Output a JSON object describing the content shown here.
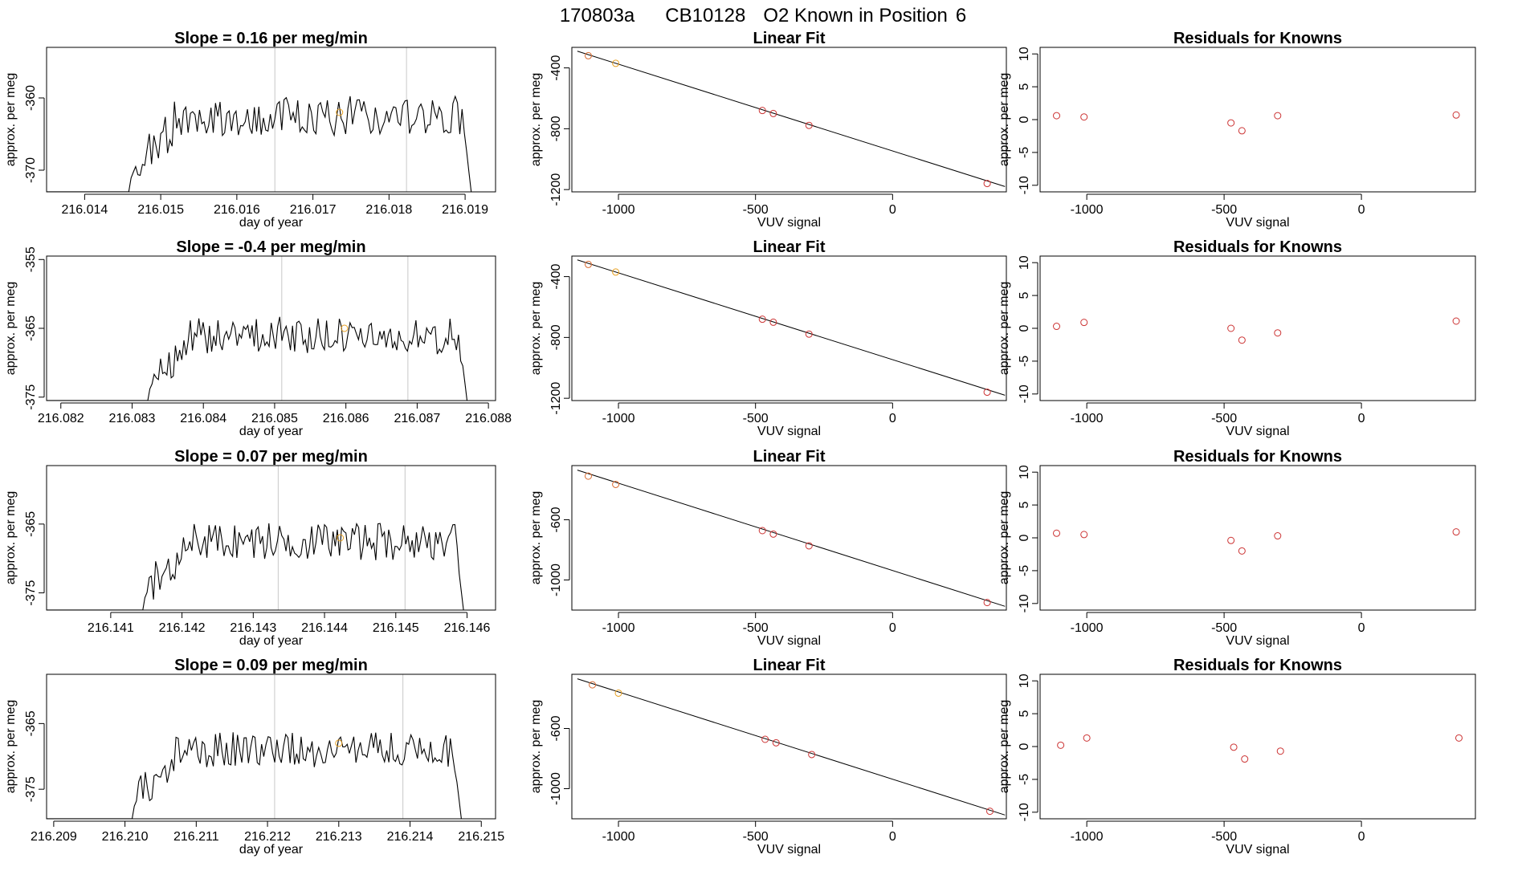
{
  "figure_title": {
    "run": "170803a",
    "cylinder": "CB10128",
    "label": "O2 Known in Position",
    "position": "6"
  },
  "colors": {
    "line": "#000000",
    "vline": "#c8c8c8",
    "point_red": "#cc3333",
    "point_orange": "#e8a020",
    "frame": "#000000"
  },
  "chart_data": [
    {
      "type": "line",
      "panel": "timeseries",
      "row": 1,
      "title_prefix": "Slope = ",
      "slope": "0.16",
      "title_suffix": " per meg/min",
      "xlabel": "day of year",
      "ylabel": "approx. per meg",
      "xlim": [
        216.0135,
        216.0194
      ],
      "ylim": [
        -373.0,
        -353.0
      ],
      "xticks": [
        216.014,
        216.015,
        216.016,
        216.017,
        216.018,
        216.019
      ],
      "xtick_labels": [
        "216.014",
        "216.015",
        "216.016",
        "216.017",
        "216.018",
        "216.019"
      ],
      "yticks": [
        -360,
        -370
      ],
      "ytick_labels": [
        "-360",
        "-370"
      ],
      "x_start": 216.01458,
      "x_end": 216.01908,
      "series_start": -373.0,
      "series_end": -373.0,
      "level": -362.5,
      "vlines": [
        216.0165,
        216.01823
      ],
      "marker": {
        "x": 216.01735,
        "y": -362.0
      }
    },
    {
      "type": "scatter",
      "panel": "fit",
      "row": 1,
      "title": "Linear Fit",
      "xlabel": "VUV signal",
      "ylabel": "approx. per meg",
      "xlim": [
        -1170,
        415
      ],
      "ylim": [
        -1215,
        -265
      ],
      "xticks": [
        -1000,
        -500,
        0
      ],
      "xtick_labels": [
        "-1000",
        "-500",
        "0"
      ],
      "yticks": [
        -400,
        -800,
        -1200
      ],
      "ytick_labels": [
        "-400",
        "-800",
        "-1200"
      ],
      "fit_line": {
        "x1": -1150,
        "y1": -290,
        "x2": 410,
        "y2": -1180
      },
      "points": [
        {
          "x": -1110,
          "y": -320,
          "color": "orange-red"
        },
        {
          "x": -1010,
          "y": -370,
          "color": "orange"
        },
        {
          "x": -475,
          "y": -680,
          "color": "red"
        },
        {
          "x": -435,
          "y": -700,
          "color": "red"
        },
        {
          "x": -305,
          "y": -778,
          "color": "red"
        },
        {
          "x": 345,
          "y": -1160,
          "color": "red"
        }
      ]
    },
    {
      "type": "scatter",
      "panel": "residuals",
      "row": 1,
      "title": "Residuals for Knowns",
      "xlabel": "VUV signal",
      "ylabel": "approx. per meg",
      "xlim": [
        -1170,
        415
      ],
      "ylim": [
        -11,
        11
      ],
      "xticks": [
        -1000,
        -500,
        0
      ],
      "xtick_labels": [
        "-1000",
        "-500",
        "0"
      ],
      "yticks": [
        10,
        5,
        0,
        -5,
        -10
      ],
      "ytick_labels": [
        "10",
        "5",
        "0",
        "-5",
        "-10"
      ],
      "points": [
        {
          "x": -1110,
          "y": 0.6
        },
        {
          "x": -1010,
          "y": 0.4
        },
        {
          "x": -475,
          "y": -0.5
        },
        {
          "x": -435,
          "y": -1.7
        },
        {
          "x": -305,
          "y": 0.6
        },
        {
          "x": 345,
          "y": 0.7
        }
      ]
    },
    {
      "type": "line",
      "panel": "timeseries",
      "row": 2,
      "title_prefix": "Slope = ",
      "slope": "-0.4",
      "title_suffix": " per meg/min",
      "xlabel": "day of year",
      "ylabel": "approx. per meg",
      "xlim": [
        216.0818,
        216.0881
      ],
      "ylim": [
        -375.5,
        -354.5
      ],
      "xticks": [
        216.082,
        216.083,
        216.084,
        216.085,
        216.086,
        216.087,
        216.088
      ],
      "xtick_labels": [
        "216.082",
        "216.083",
        "216.084",
        "216.085",
        "216.086",
        "216.087",
        "216.088"
      ],
      "yticks": [
        -355,
        -365,
        -375
      ],
      "ytick_labels": [
        "-355",
        "-365",
        "-375"
      ],
      "x_start": 216.08322,
      "x_end": 216.0877,
      "series_start": -375.5,
      "series_end": -375.5,
      "level": -366.0,
      "vlines": [
        216.0851,
        216.08687
      ],
      "marker": {
        "x": 216.08598,
        "y": -365.0
      }
    },
    {
      "type": "scatter",
      "panel": "fit",
      "row": 2,
      "title": "Linear Fit",
      "xlabel": "VUV signal",
      "ylabel": "approx. per meg",
      "xlim": [
        -1170,
        415
      ],
      "ylim": [
        -1215,
        -265
      ],
      "xticks": [
        -1000,
        -500,
        0
      ],
      "xtick_labels": [
        "-1000",
        "-500",
        "0"
      ],
      "yticks": [
        -400,
        -800,
        -1200
      ],
      "ytick_labels": [
        "-400",
        "-800",
        "-1200"
      ],
      "fit_line": {
        "x1": -1150,
        "y1": -290,
        "x2": 410,
        "y2": -1180
      },
      "points": [
        {
          "x": -1110,
          "y": -320,
          "color": "orange-red"
        },
        {
          "x": -1010,
          "y": -370,
          "color": "orange"
        },
        {
          "x": -475,
          "y": -680,
          "color": "red"
        },
        {
          "x": -435,
          "y": -700,
          "color": "red"
        },
        {
          "x": -305,
          "y": -778,
          "color": "red"
        },
        {
          "x": 345,
          "y": -1160,
          "color": "red"
        }
      ]
    },
    {
      "type": "scatter",
      "panel": "residuals",
      "row": 2,
      "title": "Residuals for Knowns",
      "xlabel": "VUV signal",
      "ylabel": "approx. per meg",
      "xlim": [
        -1170,
        415
      ],
      "ylim": [
        -11,
        11
      ],
      "xticks": [
        -1000,
        -500,
        0
      ],
      "xtick_labels": [
        "-1000",
        "-500",
        "0"
      ],
      "yticks": [
        10,
        5,
        0,
        -5,
        -10
      ],
      "ytick_labels": [
        "10",
        "5",
        "0",
        "-5",
        "-10"
      ],
      "points": [
        {
          "x": -1110,
          "y": 0.3
        },
        {
          "x": -1010,
          "y": 0.9
        },
        {
          "x": -475,
          "y": 0.0
        },
        {
          "x": -435,
          "y": -1.8
        },
        {
          "x": -305,
          "y": -0.7
        },
        {
          "x": 345,
          "y": 1.1
        }
      ]
    },
    {
      "type": "line",
      "panel": "timeseries",
      "row": 3,
      "title_prefix": "Slope = ",
      "slope": "0.07",
      "title_suffix": " per meg/min",
      "xlabel": "day of year",
      "ylabel": "approx. per meg",
      "xlim": [
        216.1401,
        216.1464
      ],
      "ylim": [
        -377.5,
        -356.5
      ],
      "xticks": [
        216.141,
        216.142,
        216.143,
        216.144,
        216.145,
        216.146
      ],
      "xtick_labels": [
        "216.141",
        "216.142",
        "216.143",
        "216.144",
        "216.145",
        "216.146"
      ],
      "yticks": [
        -365,
        -375
      ],
      "ytick_labels": [
        "-365",
        "-375"
      ],
      "x_start": 216.14145,
      "x_end": 216.14595,
      "series_start": -377.5,
      "series_end": -377.5,
      "level": -367.5,
      "vlines": [
        216.14335,
        216.14513
      ],
      "marker": {
        "x": 216.14422,
        "y": -367.0
      }
    },
    {
      "type": "scatter",
      "panel": "fit",
      "row": 3,
      "title": "Linear Fit",
      "xlabel": "VUV signal",
      "ylabel": "approx. per meg",
      "xlim": [
        -1170,
        415
      ],
      "ylim": [
        -1200,
        -240
      ],
      "xticks": [
        -1000,
        -500,
        0
      ],
      "xtick_labels": [
        "-1000",
        "-500",
        "0"
      ],
      "yticks": [
        -600,
        -1000
      ],
      "ytick_labels": [
        "-600",
        "-1000"
      ],
      "fit_line": {
        "x1": -1150,
        "y1": -270,
        "x2": 410,
        "y2": -1175
      },
      "points": [
        {
          "x": -1110,
          "y": -310,
          "color": "orange-red"
        },
        {
          "x": -1010,
          "y": -365,
          "color": "orange-red"
        },
        {
          "x": -475,
          "y": -672,
          "color": "red"
        },
        {
          "x": -435,
          "y": -695,
          "color": "red"
        },
        {
          "x": -305,
          "y": -773,
          "color": "red"
        },
        {
          "x": 345,
          "y": -1150,
          "color": "red"
        }
      ]
    },
    {
      "type": "scatter",
      "panel": "residuals",
      "row": 3,
      "title": "Residuals for Knowns",
      "xlabel": "VUV signal",
      "ylabel": "approx. per meg",
      "xlim": [
        -1170,
        415
      ],
      "ylim": [
        -11,
        11
      ],
      "xticks": [
        -1000,
        -500,
        0
      ],
      "xtick_labels": [
        "-1000",
        "-500",
        "0"
      ],
      "yticks": [
        10,
        5,
        0,
        -5,
        -10
      ],
      "ytick_labels": [
        "10",
        "5",
        "0",
        "-5",
        "-10"
      ],
      "points": [
        {
          "x": -1110,
          "y": 0.7
        },
        {
          "x": -1010,
          "y": 0.5
        },
        {
          "x": -475,
          "y": -0.4
        },
        {
          "x": -435,
          "y": -2.0
        },
        {
          "x": -305,
          "y": 0.3
        },
        {
          "x": 345,
          "y": 0.9
        }
      ]
    },
    {
      "type": "line",
      "panel": "timeseries",
      "row": 4,
      "title_prefix": "Slope = ",
      "slope": "0.09",
      "title_suffix": " per meg/min",
      "xlabel": "day of year",
      "ylabel": "approx. per meg",
      "xlim": [
        216.2089,
        216.2152
      ],
      "ylim": [
        -379.5,
        -357.5
      ],
      "xticks": [
        216.209,
        216.21,
        216.211,
        216.212,
        216.213,
        216.214,
        216.215
      ],
      "xtick_labels": [
        "216.209",
        "216.210",
        "216.211",
        "216.212",
        "216.213",
        "216.214",
        "216.215"
      ],
      "yticks": [
        -365,
        -375
      ],
      "ytick_labels": [
        "-365",
        "-375"
      ],
      "x_start": 216.2101,
      "x_end": 216.21472,
      "series_start": -379.5,
      "series_end": -379.5,
      "level": -369.0,
      "vlines": [
        216.2121,
        216.2139
      ],
      "marker": {
        "x": 216.213,
        "y": -368.0
      }
    },
    {
      "type": "scatter",
      "panel": "fit",
      "row": 4,
      "title": "Linear Fit",
      "xlabel": "VUV signal",
      "ylabel": "approx. per meg",
      "xlim": [
        -1170,
        415
      ],
      "ylim": [
        -1200,
        -240
      ],
      "xticks": [
        -1000,
        -500,
        0
      ],
      "xtick_labels": [
        "-1000",
        "-500",
        "0"
      ],
      "yticks": [
        -600,
        -1000
      ],
      "ytick_labels": [
        "-600",
        "-1000"
      ],
      "fit_line": {
        "x1": -1150,
        "y1": -270,
        "x2": 410,
        "y2": -1175
      },
      "points": [
        {
          "x": -1095,
          "y": -310,
          "color": "orange-red"
        },
        {
          "x": -1000,
          "y": -365,
          "color": "orange"
        },
        {
          "x": -465,
          "y": -672,
          "color": "red"
        },
        {
          "x": -425,
          "y": -695,
          "color": "red"
        },
        {
          "x": -295,
          "y": -773,
          "color": "red"
        },
        {
          "x": 355,
          "y": -1150,
          "color": "red"
        }
      ]
    },
    {
      "type": "scatter",
      "panel": "residuals",
      "row": 4,
      "title": "Residuals for Knowns",
      "xlabel": "VUV signal",
      "ylabel": "approx. per meg",
      "xlim": [
        -1170,
        415
      ],
      "ylim": [
        -11,
        11
      ],
      "xticks": [
        -1000,
        -500,
        0
      ],
      "xtick_labels": [
        "-1000",
        "-500",
        "0"
      ],
      "yticks": [
        10,
        5,
        0,
        -5,
        -10
      ],
      "ytick_labels": [
        "10",
        "5",
        "0",
        "-5",
        "-10"
      ],
      "points": [
        {
          "x": -1095,
          "y": 0.2
        },
        {
          "x": -1000,
          "y": 1.3
        },
        {
          "x": -465,
          "y": -0.1
        },
        {
          "x": -425,
          "y": -1.9
        },
        {
          "x": -295,
          "y": -0.7
        },
        {
          "x": 355,
          "y": 1.3
        }
      ]
    }
  ]
}
